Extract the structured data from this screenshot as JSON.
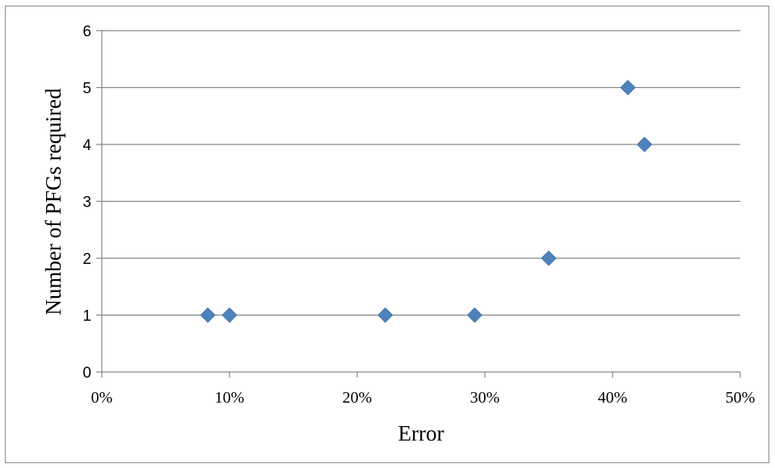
{
  "chart_data": {
    "type": "scatter",
    "title": "",
    "xlabel": "Error",
    "ylabel": "Number of PFGs required",
    "xlim": [
      0,
      0.5
    ],
    "ylim": [
      0,
      6
    ],
    "x_ticks": [
      "0%",
      "10%",
      "20%",
      "30%",
      "40%",
      "50%"
    ],
    "y_ticks": [
      "0",
      "1",
      "2",
      "3",
      "4",
      "5",
      "6"
    ],
    "grid": "horizontal",
    "legend": "none",
    "marker": "diamond",
    "marker_color": "#4f81bd",
    "series": [
      {
        "points": [
          {
            "x": 0.083,
            "y": 1
          },
          {
            "x": 0.1,
            "y": 1
          },
          {
            "x": 0.222,
            "y": 1
          },
          {
            "x": 0.292,
            "y": 1
          },
          {
            "x": 0.35,
            "y": 2
          },
          {
            "x": 0.412,
            "y": 5
          },
          {
            "x": 0.425,
            "y": 4
          }
        ]
      }
    ]
  }
}
